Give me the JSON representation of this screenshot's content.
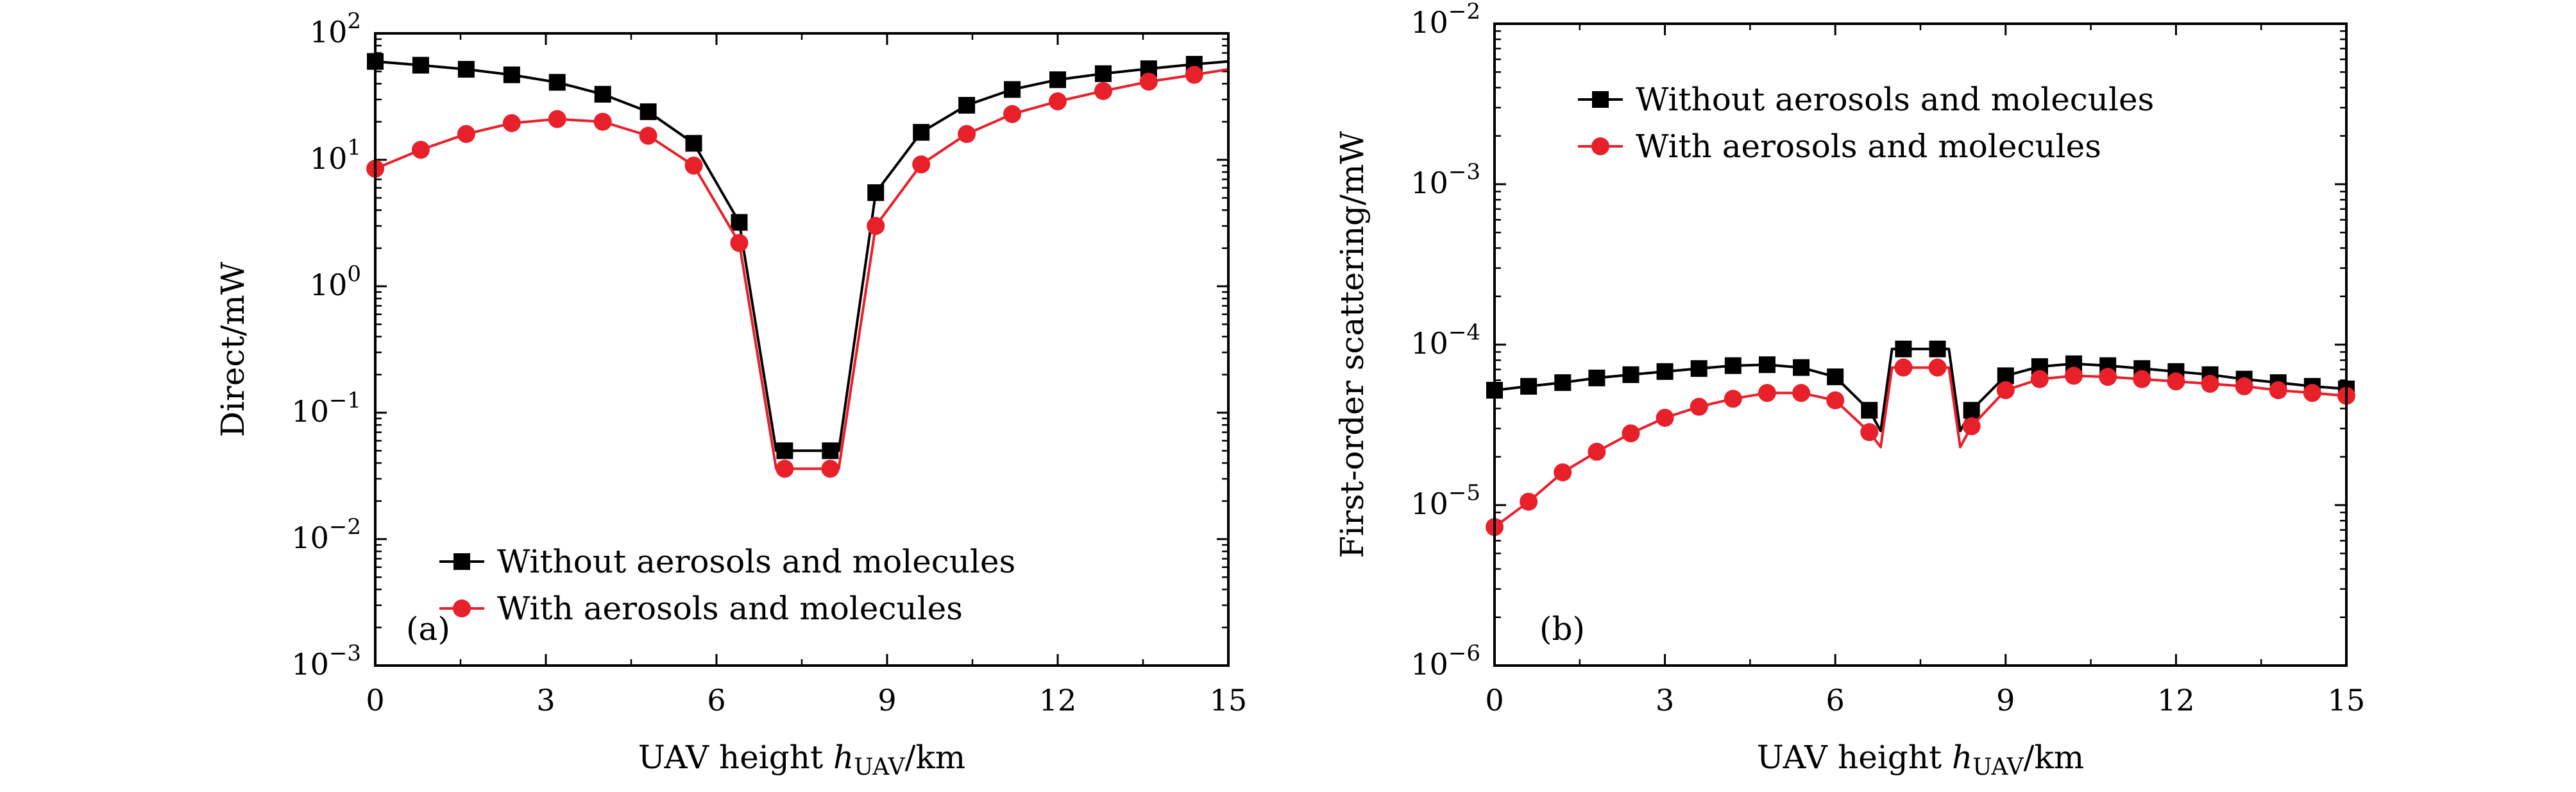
{
  "figure": {
    "x_unit_prefix": "UAV height ",
    "x_unit_var": "h",
    "x_unit_sub": "UAV",
    "x_unit_suffix": "/km"
  },
  "colors": {
    "black": "#000000",
    "red": "#e8202a"
  },
  "chart_data": [
    {
      "id": "a",
      "type": "line",
      "panel_label": "(a)",
      "ylabel": "Direct/mW",
      "yscale": "log",
      "ylim_exp": [
        -3,
        2
      ],
      "ytick_exps": [
        "-3",
        "-2",
        "-1",
        "0",
        "1",
        "2"
      ],
      "xlim": [
        0,
        15
      ],
      "xticks": [
        "0",
        "3",
        "6",
        "9",
        "12",
        "15"
      ],
      "legend_position": "lower-right",
      "series": [
        {
          "name": "Without aerosols and molecules",
          "color": "#000000",
          "marker": "square",
          "x": [
            0,
            0.8,
            1.6,
            2.4,
            3.2,
            4.0,
            4.8,
            5.6,
            6.4,
            7.05,
            7.2,
            8.0,
            8.15,
            8.8,
            9.6,
            10.4,
            11.2,
            12.0,
            12.8,
            13.6,
            14.4,
            15.0
          ],
          "y": [
            60,
            56,
            52,
            47,
            41,
            33,
            24,
            13.5,
            3.2,
            0.05,
            0.05,
            0.05,
            0.05,
            5.5,
            16.5,
            27,
            36,
            43,
            48,
            52.5,
            57,
            60
          ],
          "marker_x": [
            0,
            0.8,
            1.6,
            2.4,
            3.2,
            4.0,
            4.8,
            5.6,
            6.4,
            7.2,
            8.0,
            8.8,
            9.6,
            10.4,
            11.2,
            12.0,
            12.8,
            13.6,
            14.4
          ],
          "marker_y": [
            60,
            56,
            52,
            47,
            41,
            33,
            24,
            13.5,
            3.2,
            0.05,
            0.05,
            5.5,
            16.5,
            27,
            36,
            43,
            48,
            52.5,
            57
          ]
        },
        {
          "name": "With aerosols and molecules",
          "color": "#e8202a",
          "marker": "circle",
          "x": [
            0,
            0.8,
            1.6,
            2.4,
            3.2,
            4.0,
            4.8,
            5.6,
            6.4,
            7.05,
            7.2,
            8.0,
            8.15,
            8.8,
            9.6,
            10.4,
            11.2,
            12.0,
            12.8,
            13.6,
            14.4,
            15.0
          ],
          "y": [
            8.5,
            12,
            16,
            19.5,
            21,
            20,
            15.5,
            9,
            2.2,
            0.036,
            0.036,
            0.036,
            0.036,
            3.0,
            9.2,
            16,
            23,
            29,
            35,
            41.5,
            47,
            52
          ],
          "marker_x": [
            0,
            0.8,
            1.6,
            2.4,
            3.2,
            4.0,
            4.8,
            5.6,
            6.4,
            7.2,
            8.0,
            8.8,
            9.6,
            10.4,
            11.2,
            12.0,
            12.8,
            13.6,
            14.4
          ],
          "marker_y": [
            8.5,
            12,
            16,
            19.5,
            21,
            20,
            15.5,
            9,
            2.2,
            0.036,
            0.036,
            3.0,
            9.2,
            16,
            23,
            29,
            35,
            41.5,
            47
          ]
        }
      ]
    },
    {
      "id": "b",
      "type": "line",
      "panel_label": "(b)",
      "ylabel": "First-order scattering/mW",
      "yscale": "log",
      "ylim_exp": [
        -6,
        -2
      ],
      "ytick_exps": [
        "-6",
        "-5",
        "-4",
        "-3",
        "-2"
      ],
      "xlim": [
        0,
        15
      ],
      "xticks": [
        "0",
        "3",
        "6",
        "9",
        "12",
        "15"
      ],
      "legend_position": "upper-left",
      "series": [
        {
          "name": "Without aerosols and molecules",
          "color": "#000000",
          "marker": "square",
          "x": [
            0,
            0.6,
            1.2,
            1.8,
            2.4,
            3.0,
            3.6,
            4.2,
            4.8,
            5.4,
            6.0,
            6.6,
            6.8,
            7.0,
            7.2,
            7.8,
            8.0,
            8.2,
            8.4,
            9.0,
            9.6,
            10.2,
            10.8,
            11.4,
            12.0,
            12.6,
            13.2,
            13.8,
            14.4,
            15.0
          ],
          "y": [
            5.2e-05,
            5.5e-05,
            5.8e-05,
            6.2e-05,
            6.5e-05,
            6.8e-05,
            7.1e-05,
            7.4e-05,
            7.5e-05,
            7.2e-05,
            6.3e-05,
            3.9e-05,
            2.9e-05,
            9.4e-05,
            9.4e-05,
            9.4e-05,
            9.4e-05,
            2.9e-05,
            3.9e-05,
            6.4e-05,
            7.3e-05,
            7.6e-05,
            7.4e-05,
            7.1e-05,
            6.8e-05,
            6.5e-05,
            6.1e-05,
            5.8e-05,
            5.5e-05,
            5.3e-05
          ],
          "marker_x": [
            0,
            0.6,
            1.2,
            1.8,
            2.4,
            3.0,
            3.6,
            4.2,
            4.8,
            5.4,
            6.0,
            6.6,
            7.2,
            7.8,
            8.4,
            9.0,
            9.6,
            10.2,
            10.8,
            11.4,
            12.0,
            12.6,
            13.2,
            13.8,
            14.4,
            15.0
          ],
          "marker_y": [
            5.2e-05,
            5.5e-05,
            5.8e-05,
            6.2e-05,
            6.5e-05,
            6.8e-05,
            7.1e-05,
            7.4e-05,
            7.5e-05,
            7.2e-05,
            6.3e-05,
            3.9e-05,
            9.4e-05,
            9.4e-05,
            3.9e-05,
            6.4e-05,
            7.3e-05,
            7.6e-05,
            7.4e-05,
            7.1e-05,
            6.8e-05,
            6.5e-05,
            6.1e-05,
            5.8e-05,
            5.5e-05,
            5.3e-05
          ]
        },
        {
          "name": "With aerosols and molecules",
          "color": "#e8202a",
          "marker": "circle",
          "x": [
            0,
            0.6,
            1.2,
            1.8,
            2.4,
            3.0,
            3.6,
            4.2,
            4.8,
            5.4,
            6.0,
            6.6,
            6.8,
            7.0,
            7.2,
            7.8,
            8.0,
            8.2,
            8.4,
            9.0,
            9.6,
            10.2,
            10.8,
            11.4,
            12.0,
            12.6,
            13.2,
            13.8,
            14.4,
            15.0
          ],
          "y": [
            7.3e-06,
            1.05e-05,
            1.6e-05,
            2.15e-05,
            2.8e-05,
            3.5e-05,
            4.1e-05,
            4.6e-05,
            5e-05,
            5e-05,
            4.5e-05,
            2.85e-05,
            2.3e-05,
            7.2e-05,
            7.2e-05,
            7.2e-05,
            7.2e-05,
            2.3e-05,
            3.1e-05,
            5.2e-05,
            6.1e-05,
            6.4e-05,
            6.3e-05,
            6.1e-05,
            5.9e-05,
            5.7e-05,
            5.5e-05,
            5.2e-05,
            5e-05,
            4.8e-05
          ],
          "marker_x": [
            0,
            0.6,
            1.2,
            1.8,
            2.4,
            3.0,
            3.6,
            4.2,
            4.8,
            5.4,
            6.0,
            6.6,
            7.2,
            7.8,
            8.4,
            9.0,
            9.6,
            10.2,
            10.8,
            11.4,
            12.0,
            12.6,
            13.2,
            13.8,
            14.4,
            15.0
          ],
          "marker_y": [
            7.3e-06,
            1.05e-05,
            1.6e-05,
            2.15e-05,
            2.8e-05,
            3.5e-05,
            4.1e-05,
            4.6e-05,
            5e-05,
            5e-05,
            4.5e-05,
            2.85e-05,
            7.2e-05,
            7.2e-05,
            3.1e-05,
            5.2e-05,
            6.1e-05,
            6.4e-05,
            6.3e-05,
            6.1e-05,
            5.9e-05,
            5.7e-05,
            5.5e-05,
            5.2e-05,
            5e-05,
            4.8e-05
          ]
        }
      ]
    }
  ]
}
